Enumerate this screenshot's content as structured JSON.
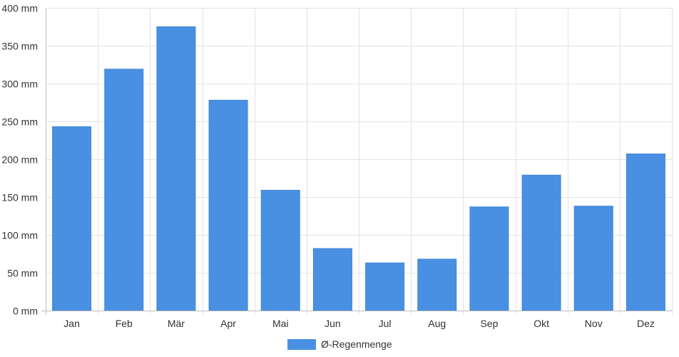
{
  "chart_data": {
    "type": "bar",
    "categories": [
      "Jan",
      "Feb",
      "Mär",
      "Apr",
      "Mai",
      "Jun",
      "Jul",
      "Aug",
      "Sep",
      "Okt",
      "Nov",
      "Dez"
    ],
    "series": [
      {
        "name": "Ø-Regenmenge",
        "values": [
          243,
          319,
          375,
          278,
          159,
          82,
          63,
          68,
          137,
          179,
          138,
          207
        ],
        "color": "#4a90e2"
      }
    ],
    "y_unit": "mm",
    "ylim": [
      0,
      400
    ],
    "yticks": [
      0,
      50,
      100,
      150,
      200,
      250,
      300,
      350,
      400
    ],
    "grid": true,
    "legend_position": "bottom"
  }
}
